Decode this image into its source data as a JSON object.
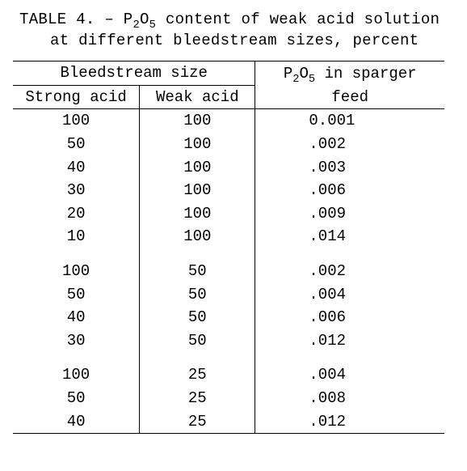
{
  "caption_prefix": "TABLE 4. – P",
  "caption_sub1": "2",
  "caption_mid1": "O",
  "caption_sub2": "5",
  "caption_rest": " content of weak acid solution at different bleedstream sizes, percent",
  "hdr_bleedstream": "Bleedstream size",
  "hdr_sparger_pre": "P",
  "hdr_sparger_s1": "2",
  "hdr_sparger_mid": "O",
  "hdr_sparger_s2": "5",
  "hdr_sparger_post": " in sparger",
  "hdr_feed": "feed",
  "hdr_strong": "Strong acid",
  "hdr_weak": "Weak acid",
  "rows": [
    {
      "sa": "100",
      "wa": "100",
      "p": "0.001"
    },
    {
      "sa": "50",
      "wa": "100",
      "p": " .002"
    },
    {
      "sa": "40",
      "wa": "100",
      "p": " .003"
    },
    {
      "sa": "30",
      "wa": "100",
      "p": " .006"
    },
    {
      "sa": "20",
      "wa": "100",
      "p": " .009"
    },
    {
      "sa": "10",
      "wa": "100",
      "p": " .014"
    },
    {
      "sa": "100",
      "wa": "50",
      "p": " .002"
    },
    {
      "sa": "50",
      "wa": "50",
      "p": " .004"
    },
    {
      "sa": "40",
      "wa": "50",
      "p": " .006"
    },
    {
      "sa": "30",
      "wa": "50",
      "p": " .012"
    },
    {
      "sa": "100",
      "wa": "25",
      "p": " .004"
    },
    {
      "sa": "50",
      "wa": "25",
      "p": " .008"
    },
    {
      "sa": "40",
      "wa": "25",
      "p": " .012"
    }
  ]
}
